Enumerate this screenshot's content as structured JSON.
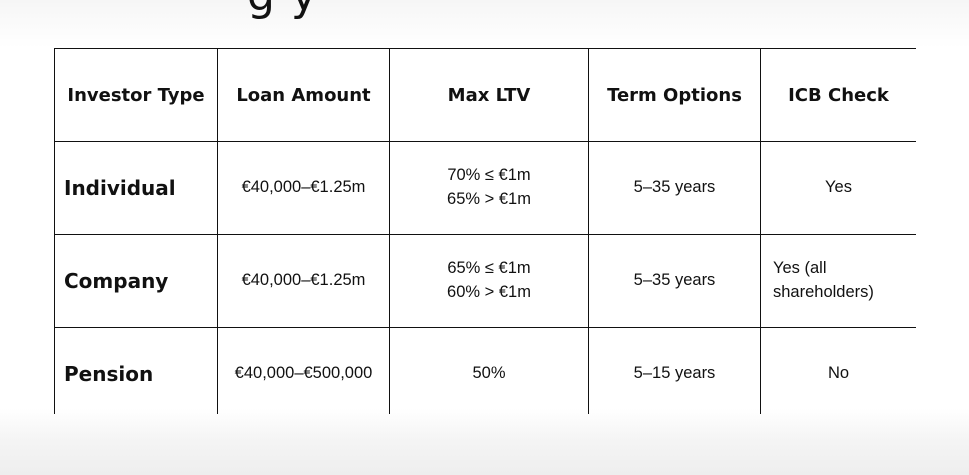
{
  "heading_fragment": "g      y",
  "table": {
    "headers": [
      "Investor Type",
      "Loan Amount",
      "Max LTV",
      "Term Options",
      "ICB Check"
    ],
    "rows": [
      {
        "investor_type": "Individual",
        "loan_amount": "€40,000–€1.25m",
        "max_ltv": [
          "70% ≤ €1m",
          "65% > €1m"
        ],
        "term_options": "5–35 years",
        "icb_check": [
          "Yes"
        ]
      },
      {
        "investor_type": "Company",
        "loan_amount": "€40,000–€1.25m",
        "max_ltv": [
          "65% ≤ €1m",
          "60% > €1m"
        ],
        "term_options": "5–35 years",
        "icb_check": [
          "Yes (all",
          "shareholders)"
        ]
      },
      {
        "investor_type": "Pension",
        "loan_amount": "€40,000–€500,000",
        "max_ltv": [
          "50%"
        ],
        "term_options": "5–15 years",
        "icb_check": [
          "No"
        ]
      }
    ]
  }
}
